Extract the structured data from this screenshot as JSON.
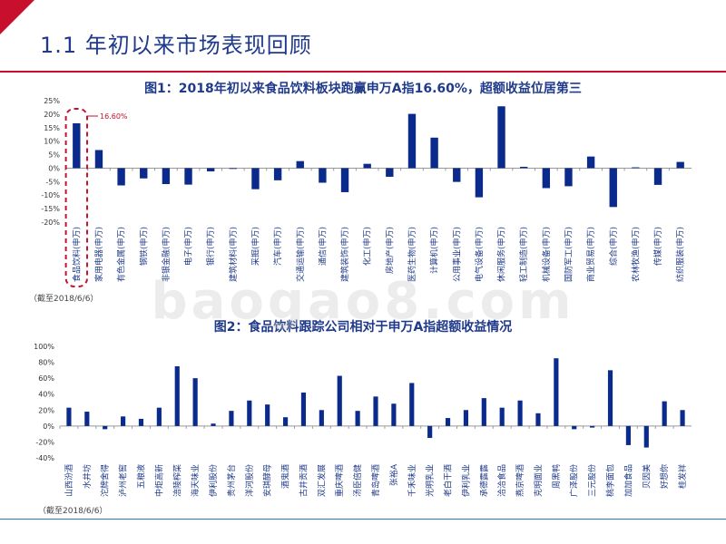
{
  "page": {
    "title": "1.1 年初以来市场表现回顾",
    "watermark": "baogao8.com"
  },
  "chart_data": [
    {
      "type": "bar",
      "title": "图1：2018年初以来食品饮料板块跑赢申万A指16.60%，超额收益位居第三",
      "annotation": "16.60%",
      "source": "（截至2018/6/6）",
      "ylim": [
        -20,
        25
      ],
      "yticks": [
        "25%",
        "20%",
        "15%",
        "10%",
        "5%",
        "0%",
        "-5%",
        "-10%",
        "-15%",
        "-20%"
      ],
      "categories": [
        "食品饮料(申万)",
        "家用电器(申万)",
        "有色金属(申万)",
        "钢铁(申万)",
        "非银金融(申万)",
        "电子(申万)",
        "银行(申万)",
        "建筑材料(申万)",
        "采掘(申万)",
        "汽车(申万)",
        "交通运输(申万)",
        "通信(申万)",
        "建筑装饰(申万)",
        "化工(申万)",
        "房地产(申万)",
        "医药生物(申万)",
        "计算机(申万)",
        "公用事业(申万)",
        "电气设备(申万)",
        "休闲服务(申万)",
        "轻工制造(申万)",
        "机械设备(申万)",
        "国防军工(申万)",
        "商业贸易(申万)",
        "综合(申万)",
        "农林牧渔(申万)",
        "传媒(申万)",
        "纺织服装(申万)"
      ],
      "values": [
        16.6,
        6.7,
        -6.4,
        -3.8,
        -5.9,
        -6.1,
        -1.2,
        -0.3,
        -7.8,
        -4.5,
        2.6,
        -5.4,
        -8.9,
        1.6,
        -3.2,
        20.1,
        11.3,
        -5.1,
        -10.8,
        22.9,
        0.5,
        -7.4,
        -6.7,
        4.3,
        -14.4,
        0.3,
        -6.2,
        2.3
      ]
    },
    {
      "type": "bar",
      "title": "图2：食品饮料跟踪公司相对于申万A指超额收益情况",
      "source": "（截至2018/6/6）",
      "ylim": [
        -40,
        100
      ],
      "yticks": [
        "100%",
        "80%",
        "60%",
        "40%",
        "20%",
        "0%",
        "-20%",
        "-40%"
      ],
      "categories": [
        "山西汾酒",
        "水井坊",
        "沱牌舍得",
        "泸州老窖",
        "五粮液",
        "中炬高新",
        "涪陵榨菜",
        "海天味业",
        "伊利股份",
        "贵州茅台",
        "洋河股份",
        "安琪酵母",
        "酒鬼酒",
        "古井贡酒",
        "双汇发展",
        "重庆啤酒",
        "汤臣倍健",
        "青岛啤酒",
        "张裕A",
        "千禾味业",
        "光明乳业",
        "老白干酒",
        "伊利乳业",
        "承德露露",
        "洽洽食品",
        "燕京啤酒",
        "克明面业",
        "周黑鸭",
        "广泽股份",
        "三元股份",
        "桃李面包",
        "加加食品",
        "贝因美",
        "好想你",
        "桂发祥"
      ],
      "values": [
        23,
        18,
        -4,
        12,
        9,
        23,
        75,
        60,
        3,
        19,
        32,
        27,
        11,
        42,
        20,
        63,
        19,
        37,
        28,
        54,
        -15,
        10,
        20,
        35,
        23,
        32,
        16,
        85,
        -4,
        -2,
        70,
        -24,
        -27,
        31,
        20
      ]
    }
  ],
  "colors": {
    "bar": "#0a2a8c",
    "accent": "#c8102e",
    "axis": "#999999",
    "title": "#1f3a8a"
  }
}
